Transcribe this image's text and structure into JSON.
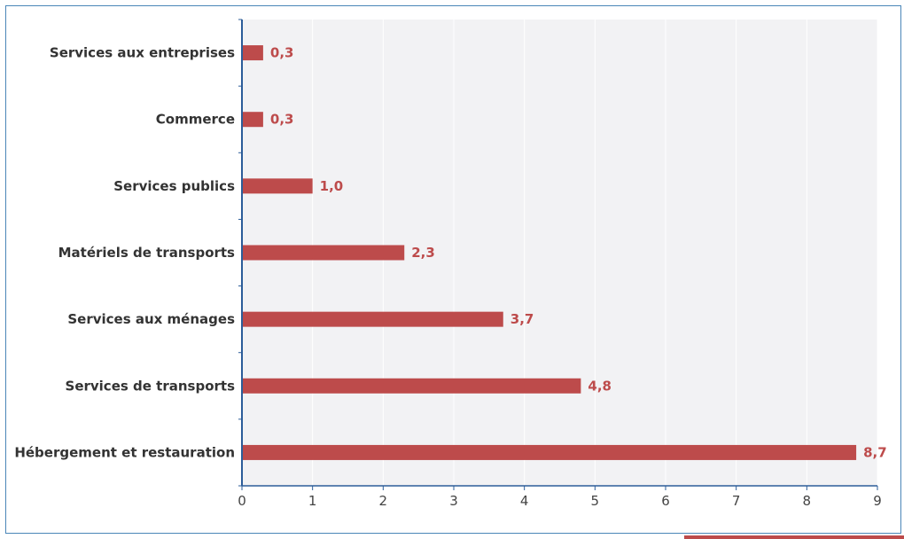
{
  "chart_data": {
    "type": "bar",
    "orientation": "horizontal",
    "categories": [
      "Services aux entreprises",
      "Commerce",
      "Services publics",
      "Matériels de transports",
      "Services aux ménages",
      "Services de transports",
      "Hébergement et restauration"
    ],
    "values": [
      0.3,
      0.3,
      1.0,
      2.3,
      3.7,
      4.8,
      8.7
    ],
    "value_labels": [
      "0,3",
      "0,3",
      "1,0",
      "2,3",
      "3,7",
      "4,8",
      "8,7"
    ],
    "title": "",
    "xlabel": "",
    "ylabel": "",
    "xlim": [
      0,
      9
    ],
    "xticks": [
      0,
      1,
      2,
      3,
      4,
      5,
      6,
      7,
      8,
      9
    ],
    "xtick_labels": [
      "0",
      "1",
      "2",
      "3",
      "4",
      "5",
      "6",
      "7",
      "8",
      "9"
    ],
    "grid": true,
    "legend": false
  },
  "colors": {
    "bar": "#bd4b4b",
    "value_label": "#bd4b4b",
    "plot_background": "#f2f2f4",
    "axis": "#2c5d99",
    "grid": "#ffffff",
    "frame_border": "#4a86b8"
  }
}
